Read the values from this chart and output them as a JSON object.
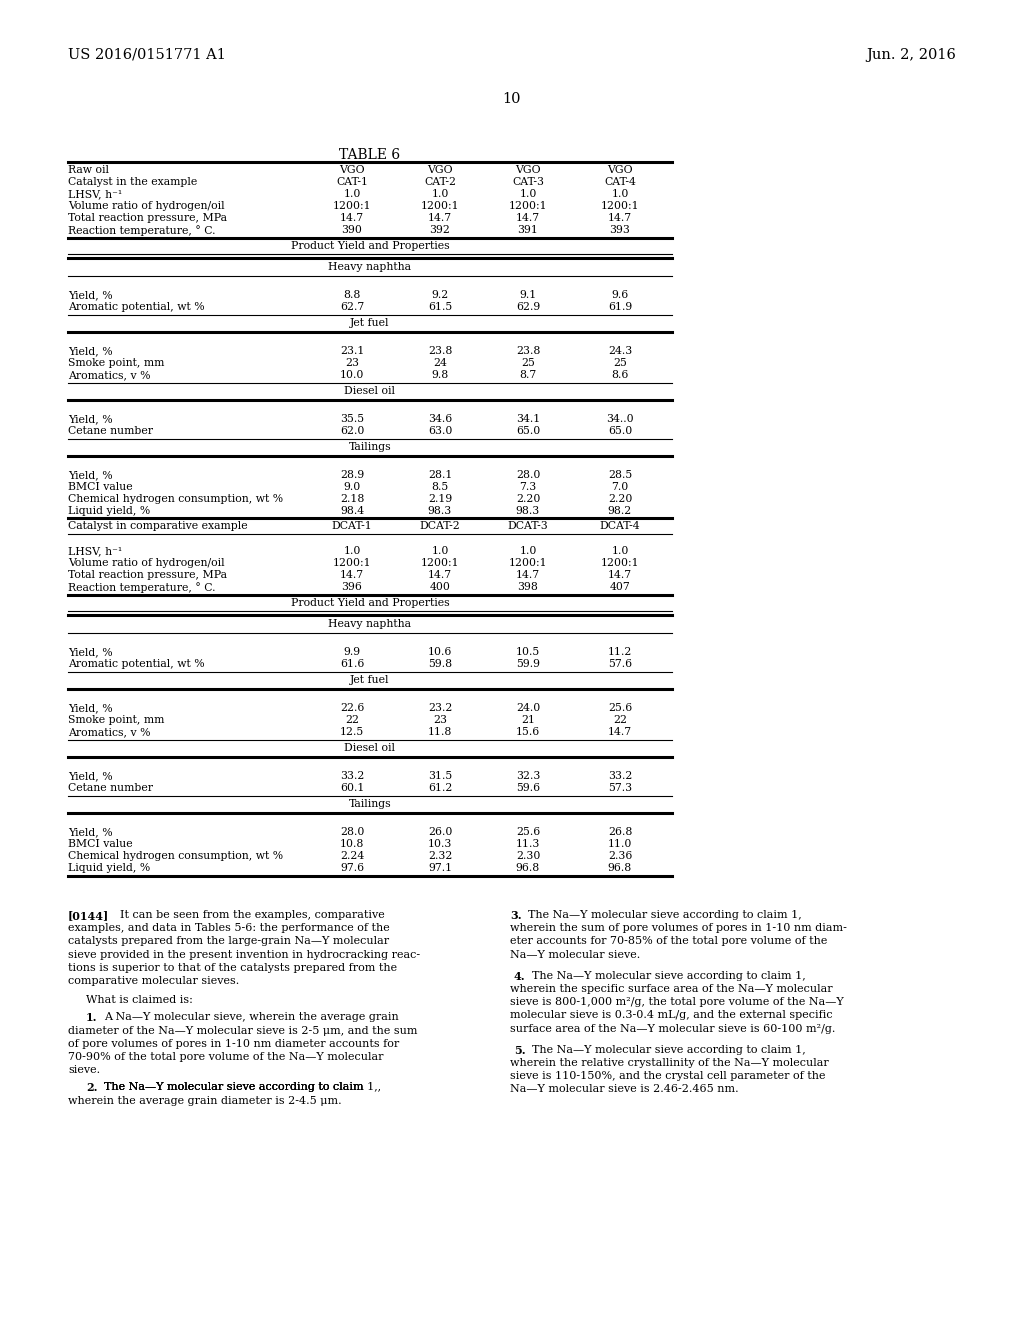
{
  "header_left": "US 2016/0151771 A1",
  "header_right": "Jun. 2, 2016",
  "page_number": "10",
  "table_title": "TABLE 6",
  "background_color": "#ffffff",
  "text_color": "#000000",
  "font_size": 7.8,
  "paragraph_font_size": 8.0
}
